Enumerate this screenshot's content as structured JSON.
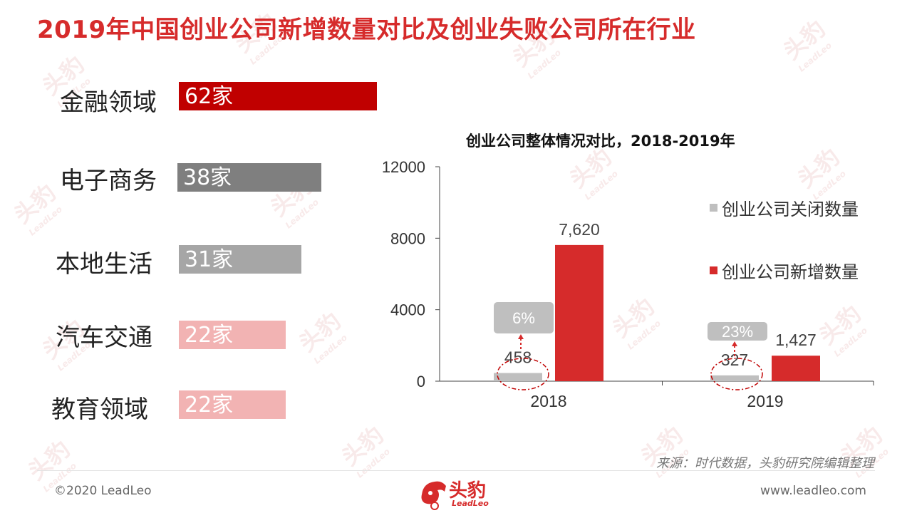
{
  "title": "2019年中国创业公司新增数量对比及创业失败公司所在行业",
  "industries": [
    {
      "name": "金融领域",
      "value_label": "62家",
      "value": 62,
      "color": "#c00000"
    },
    {
      "name": "电子商务",
      "value_label": "38家",
      "value": 38,
      "color": "#7f7f7f"
    },
    {
      "name": "本地生活",
      "value_label": "31家",
      "value": 31,
      "color": "#a6a6a6"
    },
    {
      "name": "汽车交通",
      "value_label": "22家",
      "value": 22,
      "color": "#f2b3b3"
    },
    {
      "name": "教育领域",
      "value_label": "22家",
      "value": 22,
      "color": "#f2b3b3"
    }
  ],
  "chart_title": "创业公司整体情况对比，2018-2019年",
  "chart_data": {
    "type": "bar",
    "categories": [
      "2018",
      "2019"
    ],
    "series": [
      {
        "name": "创业公司关闭数量",
        "values": [
          458,
          327
        ],
        "labels": [
          "458",
          "327"
        ],
        "color": "#bfbfbf"
      },
      {
        "name": "创业公司新增数量",
        "values": [
          7620,
          1427
        ],
        "labels": [
          "7,620",
          "1,427"
        ],
        "color": "#d62b2b"
      }
    ],
    "ylim": [
      0,
      12000
    ],
    "yticks": [
      "0",
      "4000",
      "8000",
      "12000"
    ],
    "annotations": [
      "6%",
      "23%"
    ],
    "legend": "right"
  },
  "source": "来源：时代数据，头豹研究院编辑整理",
  "footer": {
    "copyright": "©2020 LeadLeo",
    "site": "www.leadleo.com",
    "logo_text": "头豹",
    "logo_sub": "LeadLeo"
  },
  "watermark": {
    "text": "头豹",
    "sub": "LeadLeo"
  },
  "colors": {
    "accent": "#d62b2b"
  }
}
